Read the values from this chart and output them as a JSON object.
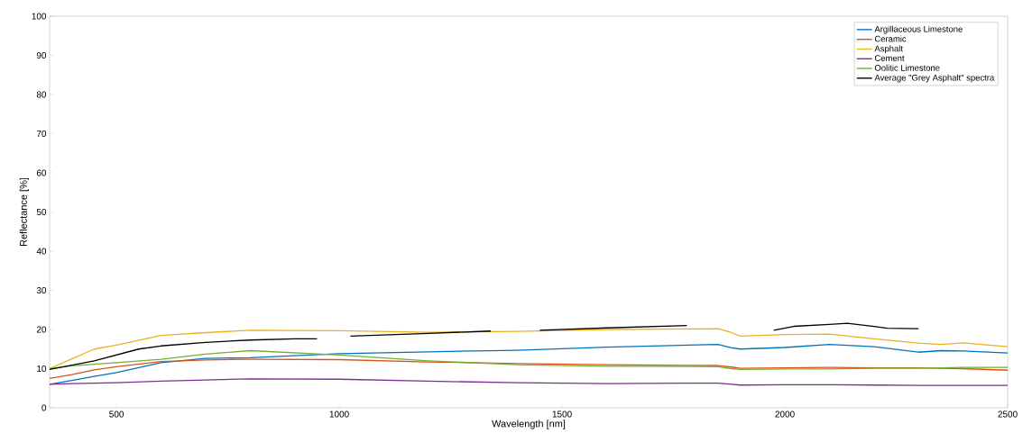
{
  "chart_data": {
    "type": "line",
    "xlabel": "Wavelength [nm]",
    "ylabel": "Reflectance [%]",
    "x": [
      350,
      400,
      450,
      500,
      600,
      700,
      800,
      1000,
      1200,
      1400,
      1600,
      1850,
      1880,
      1900,
      2000,
      2100,
      2200,
      2300,
      2350,
      2400,
      2500
    ],
    "series": [
      {
        "name": "Argillaceous Limestone",
        "color": "#0072bd",
        "values": [
          6,
          7,
          8,
          9,
          11.5,
          12.6,
          12.8,
          13.8,
          14.3,
          14.7,
          15.5,
          16.2,
          15.3,
          15,
          15.4,
          16.2,
          15.6,
          14.2,
          14.6,
          14.5,
          14
        ]
      },
      {
        "name": "Ceramic",
        "color": "#d95319",
        "values": [
          7.5,
          8.5,
          9.7,
          10.5,
          11.8,
          12.2,
          12.4,
          12.3,
          11.7,
          11.3,
          11,
          10.8,
          10.4,
          10.1,
          10.2,
          10.3,
          10.2,
          10.2,
          10.1,
          10,
          9.6
        ]
      },
      {
        "name": "Asphalt",
        "color": "#edb120",
        "values": [
          10,
          12.5,
          15,
          16,
          18.5,
          19.2,
          19.8,
          19.7,
          19.3,
          19.5,
          20,
          20.2,
          19.2,
          18.3,
          18.7,
          18.8,
          17.6,
          16.5,
          16.2,
          16.6,
          15.6
        ]
      },
      {
        "name": "Cement",
        "color": "#7e2f8e",
        "values": [
          6,
          6.2,
          6.3,
          6.4,
          6.8,
          7.1,
          7.4,
          7.3,
          6.8,
          6.4,
          6.2,
          6.3,
          6,
          5.8,
          5.9,
          5.9,
          5.8,
          5.7,
          5.7,
          5.7,
          5.7
        ]
      },
      {
        "name": "Oolitic Limestone",
        "color": "#77ac30",
        "values": [
          10,
          10.7,
          11.1,
          11.5,
          12.4,
          13.7,
          14.6,
          13.5,
          12,
          11,
          10.6,
          10.5,
          10,
          9.8,
          9.9,
          9.9,
          10.1,
          10.1,
          10.2,
          10.3,
          10.3
        ]
      },
      {
        "name": "Average \"Grey Asphalt\" spectra",
        "color": "#000000",
        "x": [
          350,
          450,
          550,
          600,
          700,
          800,
          900,
          950,
          990,
          1025,
          1200,
          1340,
          1400,
          1450,
          1600,
          1780,
          1880,
          1975,
          2020,
          2100,
          2140,
          2200,
          2230,
          2300
        ],
        "values": [
          9.8,
          12,
          15,
          15.8,
          16.7,
          17.3,
          17.6,
          17.6,
          null,
          18.3,
          19,
          19.6,
          null,
          19.8,
          20.4,
          21,
          null,
          19.8,
          20.8,
          21.3,
          21.6,
          20.8,
          20.3,
          20.2
        ]
      }
    ],
    "xlim": [
      350,
      2500
    ],
    "ylim": [
      0,
      100
    ],
    "xticks": [
      500,
      1000,
      1500,
      2000,
      2500
    ],
    "yticks": [
      0,
      10,
      20,
      30,
      40,
      50,
      60,
      70,
      80,
      90,
      100
    ],
    "legend": "top right",
    "grid": false
  }
}
